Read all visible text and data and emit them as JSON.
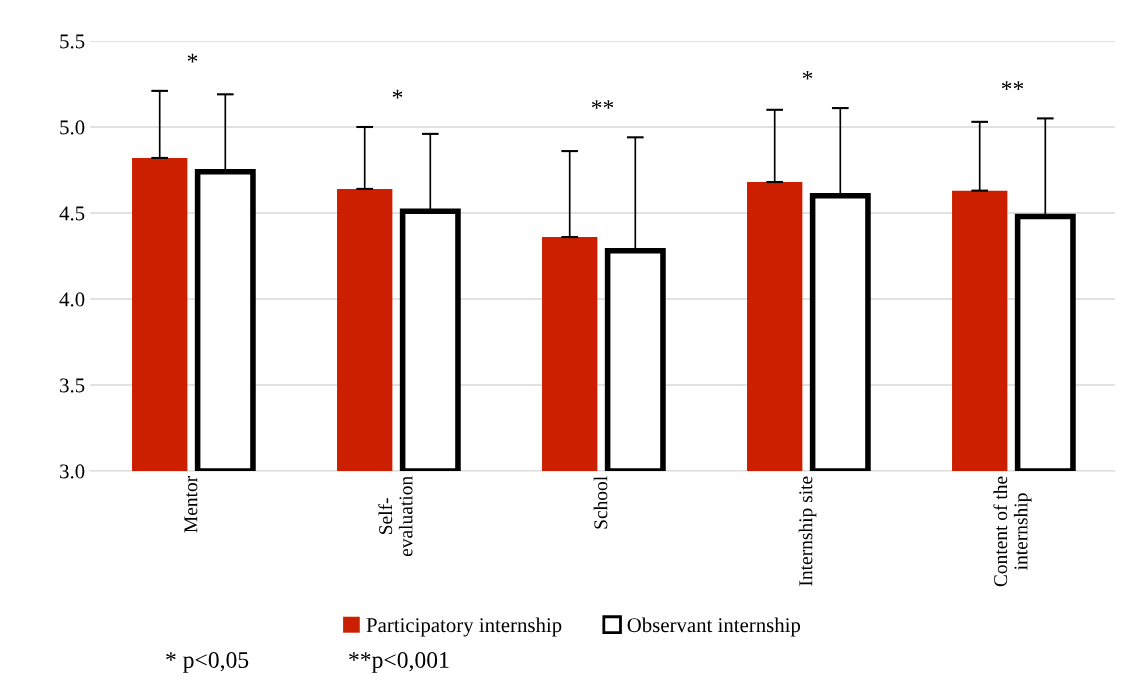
{
  "chart_data": {
    "type": "bar",
    "categories": [
      "Mentor",
      "Self-\nevaluation",
      "School",
      "Internship site",
      "Content of the\ninternship"
    ],
    "series": [
      {
        "name": "Participatory internship",
        "color": "#cc1f00",
        "values": [
          4.82,
          4.64,
          4.36,
          4.68,
          4.63
        ],
        "errors": [
          [
            4.82,
            5.21
          ],
          [
            4.64,
            5.0
          ],
          [
            4.36,
            4.86
          ],
          [
            4.68,
            5.1
          ],
          [
            4.63,
            5.03
          ]
        ]
      },
      {
        "name": "Observant internship",
        "color": "#ffffff",
        "values": [
          4.74,
          4.51,
          4.28,
          4.6,
          4.48
        ],
        "errors": [
          [
            4.74,
            5.19
          ],
          [
            4.51,
            4.96
          ],
          [
            4.28,
            4.94
          ],
          [
            4.6,
            5.11
          ],
          [
            4.48,
            5.05
          ]
        ]
      }
    ],
    "ylim": [
      3.0,
      5.5
    ],
    "yticks": [
      {
        "value": 3.0,
        "label": "3.0"
      },
      {
        "value": 3.5,
        "label": "3.5"
      },
      {
        "value": 4.0,
        "label": "4.0"
      },
      {
        "value": 4.5,
        "label": "4.5"
      },
      {
        "value": 5.0,
        "label": "5.0"
      },
      {
        "value": 5.5,
        "label": "5.5"
      }
    ],
    "grid": "y",
    "legend": "bottom",
    "annotations": [
      "*",
      "*",
      "**",
      "*",
      "**",
      "* p<0,05",
      "**p<0,001"
    ]
  }
}
